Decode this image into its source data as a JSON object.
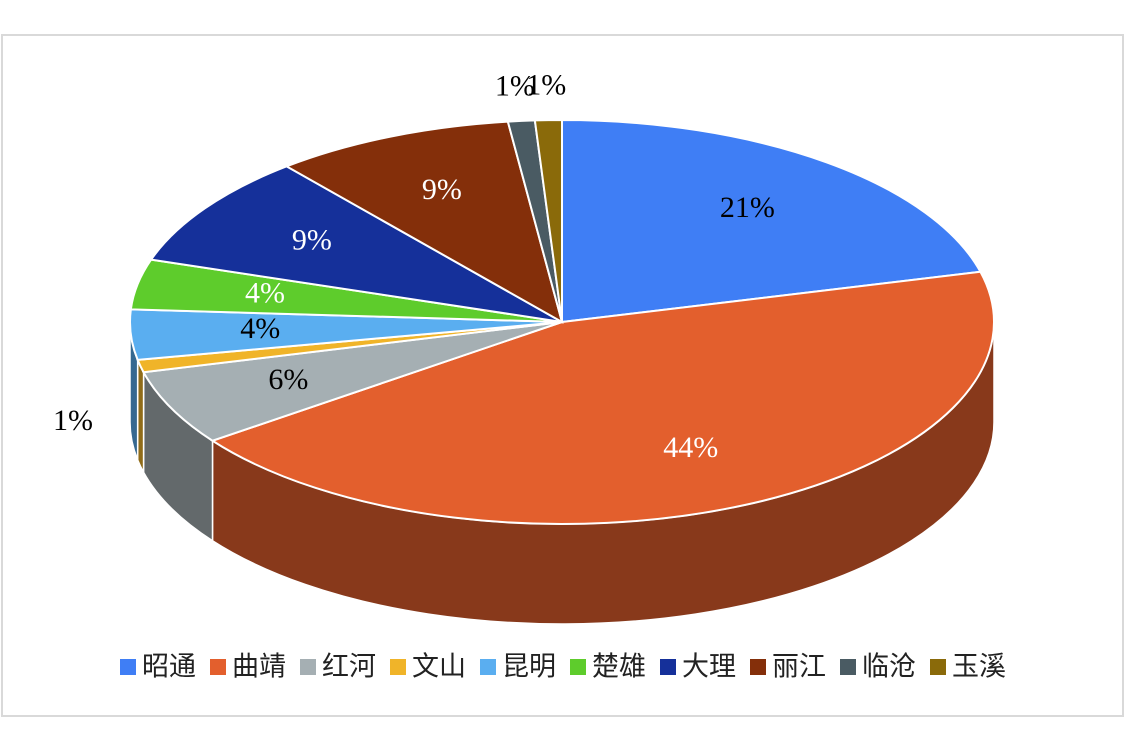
{
  "chart_data": {
    "type": "pie",
    "categories": [
      "昭通",
      "曲靖",
      "红河",
      "文山",
      "昆明",
      "楚雄",
      "大理",
      "丽江",
      "临沧",
      "玉溪"
    ],
    "values": [
      21,
      44,
      6,
      1,
      4,
      4,
      9,
      9,
      1,
      1
    ],
    "value_labels": [
      "21%",
      "44%",
      "6%",
      "1%",
      "4%",
      "4%",
      "9%",
      "9%",
      "1%",
      "1%"
    ],
    "colors": [
      "#3f7ef5",
      "#e35f2d",
      "#a5afb3",
      "#f0b429",
      "#5aaef0",
      "#5ecc2c",
      "#15309a",
      "#842f0a",
      "#4a5b63",
      "#8a6a0a"
    ],
    "legend": "bottom"
  }
}
